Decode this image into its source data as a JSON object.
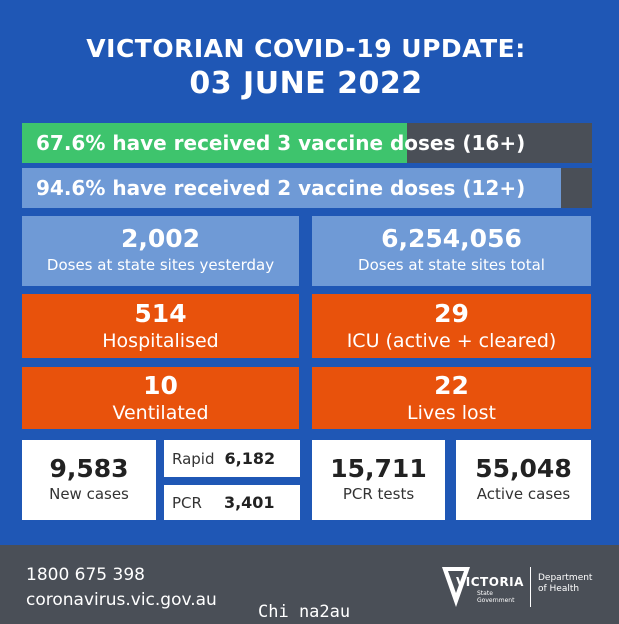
{
  "header": {
    "title": "VICTORIAN COVID-19 UPDATE:",
    "date": "03 JUNE 2022"
  },
  "vaccine_bars": [
    {
      "label": "67.6% have received 3 vaccine doses (16+)",
      "percent": 67.6,
      "fill_color": "#3ec46d"
    },
    {
      "label": "94.6% have received 2 vaccine doses (12+)",
      "percent": 94.6,
      "fill_color": "#6f9ad6"
    }
  ],
  "doses": {
    "yesterday": {
      "value": "2,002",
      "label": "Doses at state sites yesterday"
    },
    "total": {
      "value": "6,254,056",
      "label": "Doses at state sites total"
    }
  },
  "hospital": {
    "hospitalised": {
      "value": "514",
      "label": "Hospitalised"
    },
    "icu": {
      "value": "29",
      "label": "ICU (active + cleared)"
    },
    "ventilated": {
      "value": "10",
      "label": "Ventilated"
    },
    "lives_lost": {
      "value": "22",
      "label": "Lives lost"
    }
  },
  "cases": {
    "new_cases": {
      "value": "9,583",
      "label": "New cases"
    },
    "rapid": {
      "label": "Rapid",
      "value": "6,182"
    },
    "pcr": {
      "label": "PCR",
      "value": "3,401"
    },
    "pcr_tests": {
      "value": "15,711",
      "label": "PCR tests"
    },
    "active_cases": {
      "value": "55,048",
      "label": "Active cases"
    }
  },
  "footer": {
    "phone": "1800 675 398",
    "website": "coronavirus.vic.gov.au",
    "logo_word": "VICTORIA",
    "logo_sub_1": "State",
    "logo_sub_2": "Government",
    "dept_line_1": "Department",
    "dept_line_2": "of Health"
  },
  "watermark": "Chi na2au",
  "colors": {
    "background": "#1f57b5",
    "light_tile": "#6f9ad6",
    "orange_tile": "#e8520c",
    "bar_track": "#4a4f57",
    "green_fill": "#3ec46d",
    "footer": "#4a4f57"
  }
}
